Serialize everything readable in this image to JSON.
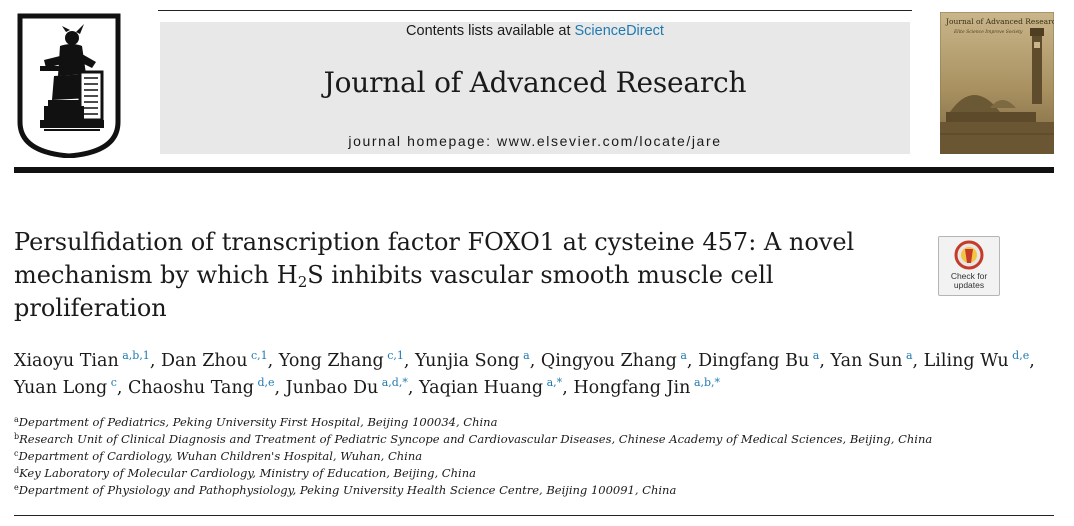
{
  "masthead": {
    "contents_prefix": "Contents lists available at ",
    "contents_link": "ScienceDirect",
    "journal_title": "Journal of Advanced Research",
    "homepage": "journal homepage: www.elsevier.com/locate/jare"
  },
  "cover": {
    "title": "Journal of Advanced Research",
    "subtitle": "Elite Science Improve Society"
  },
  "check_badge": {
    "line1": "Check for",
    "line2": "updates"
  },
  "article": {
    "title_part1": "Persulfidation of transcription factor FOXO1 at cysteine 457: A novel mechanism by which H",
    "title_sub": "2",
    "title_part2": "S inhibits vascular smooth muscle cell proliferation"
  },
  "authors": [
    {
      "name": "Xiaoyu Tian",
      "aff": "a,b,1",
      "sep": ", "
    },
    {
      "name": "Dan Zhou",
      "aff": "c,1",
      "sep": ", "
    },
    {
      "name": "Yong Zhang",
      "aff": "c,1",
      "sep": ", "
    },
    {
      "name": "Yunjia Song",
      "aff": "a",
      "sep": ", "
    },
    {
      "name": "Qingyou Zhang",
      "aff": "a",
      "sep": ", "
    },
    {
      "name": "Dingfang Bu",
      "aff": "a",
      "sep": ", "
    },
    {
      "name": "Yan Sun",
      "aff": "a",
      "sep": ", "
    },
    {
      "name": "Liling Wu",
      "aff": "d,e",
      "sep": ", "
    },
    {
      "name": "Yuan Long",
      "aff": "c",
      "sep": ", "
    },
    {
      "name": "Chaoshu Tang",
      "aff": "d,e",
      "sep": ", "
    },
    {
      "name": "Junbao Du",
      "aff": "a,d,*",
      "sep": ", "
    },
    {
      "name": "Yaqian Huang",
      "aff": "a,*",
      "sep": ", "
    },
    {
      "name": "Hongfang Jin",
      "aff": "a,b,*",
      "sep": ""
    }
  ],
  "affiliations": [
    {
      "letter": "a",
      "text": "Department of Pediatrics, Peking University First Hospital, Beijing 100034, China"
    },
    {
      "letter": "b",
      "text": "Research Unit of Clinical Diagnosis and Treatment of Pediatric Syncope and Cardiovascular Diseases, Chinese Academy of Medical Sciences, Beijing, China"
    },
    {
      "letter": "c",
      "text": "Department of Cardiology, Wuhan Children's Hospital, Wuhan, China"
    },
    {
      "letter": "d",
      "text": "Key Laboratory of Molecular Cardiology, Ministry of Education, Beijing, China"
    },
    {
      "letter": "e",
      "text": "Department of Physiology and Pathophysiology, Peking University Health Science Centre, Beijing 100091, China"
    }
  ]
}
